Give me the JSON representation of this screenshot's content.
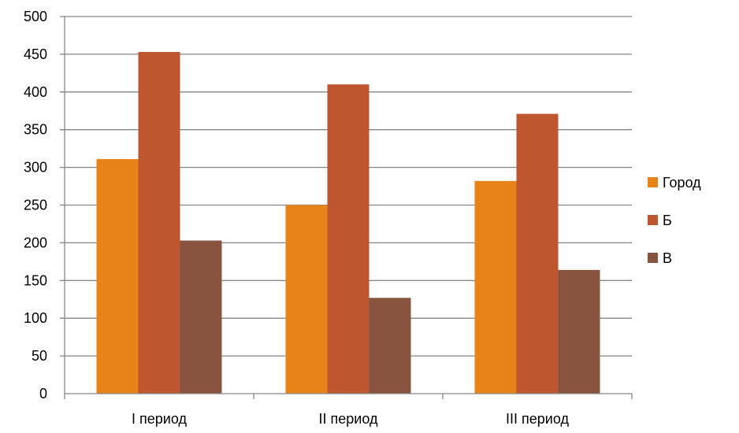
{
  "chart_data": {
    "type": "bar",
    "categories": [
      "I период",
      "II период",
      "III период"
    ],
    "series": [
      {
        "name": "Город",
        "color": "#E6841A",
        "values": [
          311,
          250,
          282
        ]
      },
      {
        "name": "Б",
        "color": "#BE5630",
        "values": [
          453,
          410,
          371
        ]
      },
      {
        "name": "В",
        "color": "#885440",
        "values": [
          203,
          127,
          164
        ]
      }
    ],
    "ylim": [
      0,
      500
    ],
    "yticks": [
      0,
      50,
      100,
      150,
      200,
      250,
      300,
      350,
      400,
      450,
      500
    ],
    "grid": true,
    "legend_position": "right"
  }
}
